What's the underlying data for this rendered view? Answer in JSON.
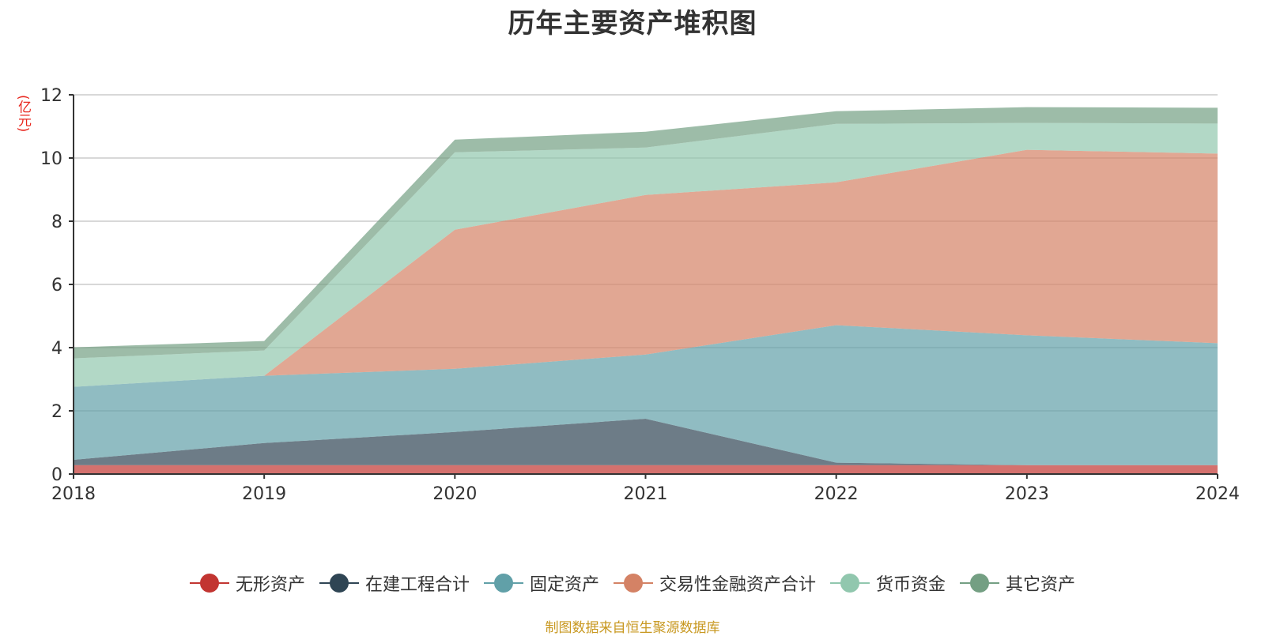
{
  "chart_data": {
    "type": "area",
    "title": "历年主要资产堆积图",
    "y_unit": "(亿元)",
    "categories": [
      "2018",
      "2019",
      "2020",
      "2021",
      "2022",
      "2023",
      "2024"
    ],
    "ylim": [
      0,
      12
    ],
    "yticks": [
      "0",
      "2",
      "4",
      "6",
      "8",
      "10",
      "12"
    ],
    "grid": true,
    "legend_position": "bottom",
    "stacked": true,
    "series": [
      {
        "name": "无形资产",
        "color": "#c23531",
        "values": [
          0.28,
          0.28,
          0.28,
          0.28,
          0.28,
          0.28,
          0.28
        ]
      },
      {
        "name": "在建工程合计",
        "color": "#2f4554",
        "values": [
          0.17,
          0.7,
          1.05,
          1.47,
          0.08,
          0.0,
          0.0
        ]
      },
      {
        "name": "固定资产",
        "color": "#61a0a8",
        "values": [
          2.31,
          2.13,
          2.0,
          2.03,
          4.35,
          4.11,
          3.86
        ]
      },
      {
        "name": "交易性金融资产合计",
        "color": "#d48265",
        "values": [
          0.0,
          0.0,
          4.4,
          5.05,
          4.52,
          5.87,
          6.0
        ]
      },
      {
        "name": "货币资金",
        "color": "#91c7ae",
        "values": [
          0.9,
          0.8,
          2.45,
          1.5,
          1.85,
          0.85,
          0.95
        ]
      },
      {
        "name": "其它资产",
        "color": "#749f83",
        "values": [
          0.35,
          0.3,
          0.4,
          0.5,
          0.4,
          0.5,
          0.5
        ]
      }
    ]
  },
  "source_note": "制图数据来自恒生聚源数据库"
}
